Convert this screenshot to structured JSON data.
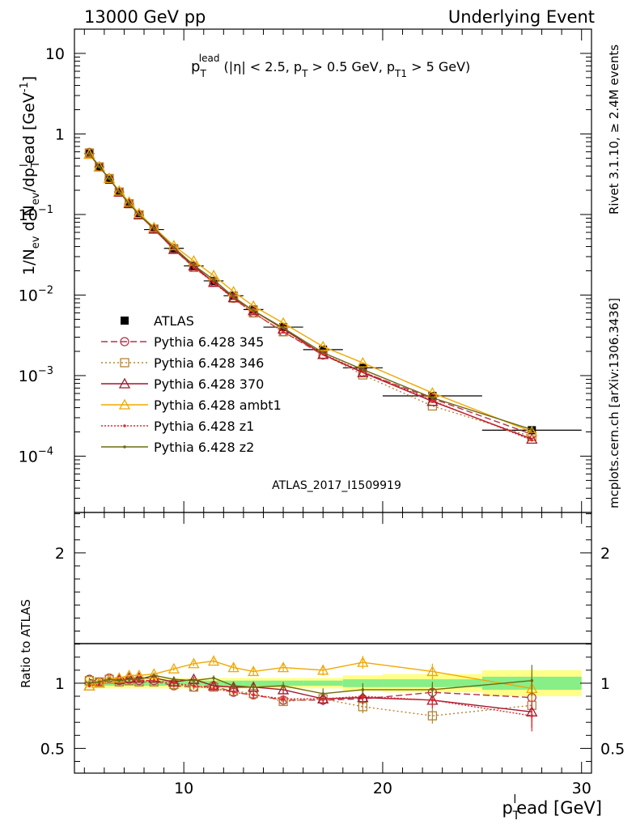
{
  "header": {
    "left": "13000 GeV pp",
    "right": "Underlying Event"
  },
  "side_labels": {
    "rivet": "Rivet 3.1.10, ≥ 2.4M events",
    "mcplots": "mcplots.cern.ch [arXiv:1306.3436]"
  },
  "analysis_label": "ATLAS_2017_I1509919",
  "chart_data": [
    {
      "type": "scatter",
      "panel": "main",
      "title": "p_T^lead (|η| < 2.5, p_T > 0.5 GeV, p_T1 > 5 GeV)",
      "title_parts": {
        "p": "p",
        "sub_t": "T",
        "sup_lead": "lead",
        "rest": " (|η| < 2.5, p",
        "sub_t2": "T",
        "mid": " > 0.5 GeV, p",
        "sub_t1": "T1",
        "end": " > 5 GeV)"
      },
      "ylabel": "1/N_ev d N_ev/dp_T^l ead [GeV^-1]",
      "ylabel_parts": {
        "a": "1/N",
        "sub_ev": "ev",
        "b": " d N",
        "sub_ev2": "ev",
        "c": "/dp",
        "sub_t": "T",
        "sup_l": "l",
        "d": "ead [GeV",
        "sup_m1": "-1",
        "e": "]"
      },
      "yscale": "log",
      "ylim": [
        2e-05,
        20
      ],
      "yticks": [
        {
          "v": 10,
          "base": "10",
          "exp": ""
        },
        {
          "v": 1,
          "base": "1",
          "exp": ""
        },
        {
          "v": 0.1,
          "base": "10",
          "exp": "−1"
        },
        {
          "v": 0.01,
          "base": "10",
          "exp": "−2"
        },
        {
          "v": 0.001,
          "base": "10",
          "exp": "−3"
        },
        {
          "v": 0.0001,
          "base": "10",
          "exp": "−4"
        }
      ],
      "xlim": [
        4.5,
        30.5
      ],
      "legend_position": "center-left",
      "x": [
        5.25,
        5.75,
        6.25,
        6.75,
        7.25,
        7.75,
        8.5,
        9.5,
        10.5,
        11.5,
        12.5,
        13.5,
        15,
        17,
        19,
        22.5,
        27.5
      ],
      "xerr": [
        0.25,
        0.25,
        0.25,
        0.25,
        0.25,
        0.25,
        0.5,
        0.5,
        0.5,
        0.5,
        0.5,
        0.5,
        1,
        1,
        1,
        2.5,
        2.5
      ],
      "series": [
        {
          "name": "ATLAS",
          "style": "data",
          "color": "#000000",
          "values": [
            0.57,
            0.39,
            0.27,
            0.19,
            0.135,
            0.098,
            0.065,
            0.038,
            0.023,
            0.015,
            0.0098,
            0.0066,
            0.004,
            0.0021,
            0.00125,
            0.00056,
            0.00021
          ]
        },
        {
          "name": "Pythia 6.428 345",
          "style": "circle",
          "dash": "8,4",
          "color": "#b7324a",
          "values": [
            0.59,
            0.39,
            0.28,
            0.19,
            0.137,
            0.099,
            0.066,
            0.037,
            0.022,
            0.0146,
            0.0091,
            0.006,
            0.0035,
            0.0018,
            0.0011,
            0.00052,
            0.000187
          ]
        },
        {
          "name": "Pythia 6.428 346",
          "style": "square",
          "dash": "2,3",
          "color": "#b48433",
          "values": [
            0.58,
            0.39,
            0.28,
            0.19,
            0.136,
            0.099,
            0.066,
            0.037,
            0.022,
            0.0145,
            0.0092,
            0.006,
            0.0035,
            0.00185,
            0.00102,
            0.00042,
            0.000175
          ]
        },
        {
          "name": "Pythia 6.428 370",
          "style": "triangle",
          "dash": "",
          "color": "#a2162e",
          "values": [
            0.56,
            0.39,
            0.28,
            0.19,
            0.137,
            0.099,
            0.066,
            0.037,
            0.023,
            0.0144,
            0.0093,
            0.0064,
            0.0038,
            0.00183,
            0.00109,
            0.00048,
            0.000163
          ]
        },
        {
          "name": "Pythia 6.428 ambt1",
          "style": "triangle",
          "dash": "",
          "color": "#f0a800",
          "values": [
            0.56,
            0.39,
            0.28,
            0.196,
            0.143,
            0.103,
            0.069,
            0.041,
            0.0265,
            0.0175,
            0.011,
            0.0073,
            0.0045,
            0.00229,
            0.00144,
            0.00061,
            0.000201
          ]
        },
        {
          "name": "Pythia 6.428 z1",
          "style": "dot",
          "dash": "2,2",
          "color": "#e8262a",
          "values": [
            0.56,
            0.39,
            0.28,
            0.19,
            0.137,
            0.099,
            0.066,
            0.038,
            0.022,
            0.0143,
            0.009,
            0.006,
            0.0035,
            0.00185,
            0.00112,
            0.00049,
            0.000158
          ]
        },
        {
          "name": "Pythia 6.428 z2",
          "style": "dot",
          "dash": "",
          "color": "#6b6b12",
          "values": [
            0.57,
            0.39,
            0.28,
            0.19,
            0.137,
            0.099,
            0.068,
            0.039,
            0.0235,
            0.0155,
            0.0095,
            0.0064,
            0.0039,
            0.00193,
            0.00119,
            0.00053,
            0.000214
          ]
        }
      ]
    },
    {
      "type": "scatter",
      "panel": "ratio",
      "ylabel": "Ratio to ATLAS",
      "xlabel": "p_T^l ead [GeV]",
      "xlabel_parts": {
        "a": "p",
        "sub_t": "T",
        "sup_l": "l",
        "b": "ead [GeV]"
      },
      "xlim": [
        4.5,
        30.5
      ],
      "ylim": [
        0.31,
        2.31
      ],
      "yticks": [
        0.5,
        1,
        2
      ],
      "xticks": [
        10,
        20,
        30
      ],
      "bands": {
        "stat_color": "#88ee88",
        "total_color": "#ffff88",
        "x_edges": [
          5,
          5.5,
          6,
          6.5,
          7,
          7.5,
          8,
          9,
          10,
          11,
          12,
          13,
          14,
          16,
          18,
          20,
          25,
          30
        ],
        "inner": [
          0.02,
          0.02,
          0.02,
          0.02,
          0.02,
          0.02,
          0.02,
          0.02,
          0.02,
          0.02,
          0.02,
          0.02,
          0.02,
          0.02,
          0.03,
          0.03,
          0.05
        ],
        "outer": [
          0.04,
          0.04,
          0.04,
          0.04,
          0.04,
          0.04,
          0.04,
          0.04,
          0.04,
          0.04,
          0.04,
          0.04,
          0.04,
          0.04,
          0.06,
          0.07,
          0.1
        ]
      },
      "series": [
        {
          "name": "Pythia 6.428 345",
          "values": [
            1.03,
            1.01,
            1.04,
            1.02,
            1.03,
            1.02,
            1.02,
            0.98,
            0.97,
            0.98,
            0.93,
            0.91,
            0.87,
            0.87,
            0.88,
            0.93,
            0.89
          ]
        },
        {
          "name": "Pythia 6.428 346",
          "values": [
            1.02,
            1.01,
            1.03,
            1.01,
            1.02,
            1.01,
            1.01,
            0.99,
            0.97,
            0.97,
            0.94,
            0.92,
            0.86,
            0.88,
            0.82,
            0.75,
            0.83
          ]
        },
        {
          "name": "Pythia 6.428 370",
          "values": [
            0.98,
            1.0,
            1.03,
            1.03,
            1.04,
            1.04,
            1.04,
            1.01,
            1.03,
            0.98,
            0.97,
            0.97,
            0.95,
            0.88,
            0.89,
            0.87,
            0.78
          ]
        },
        {
          "name": "Pythia 6.428 ambt1",
          "values": [
            0.98,
            1.0,
            1.03,
            1.04,
            1.06,
            1.06,
            1.07,
            1.11,
            1.15,
            1.17,
            1.12,
            1.09,
            1.12,
            1.1,
            1.16,
            1.09,
            0.96
          ]
        },
        {
          "name": "Pythia 6.428 z1",
          "values": [
            0.98,
            0.99,
            1.03,
            1.02,
            1.03,
            1.02,
            1.02,
            1.0,
            0.98,
            0.96,
            0.93,
            0.91,
            0.88,
            0.88,
            0.9,
            0.87,
            0.75
          ]
        },
        {
          "name": "Pythia 6.428 z2",
          "values": [
            1.0,
            1.01,
            1.03,
            1.02,
            1.03,
            1.03,
            1.06,
            1.03,
            1.02,
            1.04,
            0.98,
            0.97,
            0.98,
            0.92,
            0.95,
            0.95,
            1.02
          ]
        }
      ],
      "yerr": [
        0.01,
        0.01,
        0.01,
        0.01,
        0.01,
        0.01,
        0.01,
        0.015,
        0.02,
        0.02,
        0.025,
        0.03,
        0.03,
        0.04,
        0.05,
        0.06,
        0.12
      ]
    }
  ]
}
